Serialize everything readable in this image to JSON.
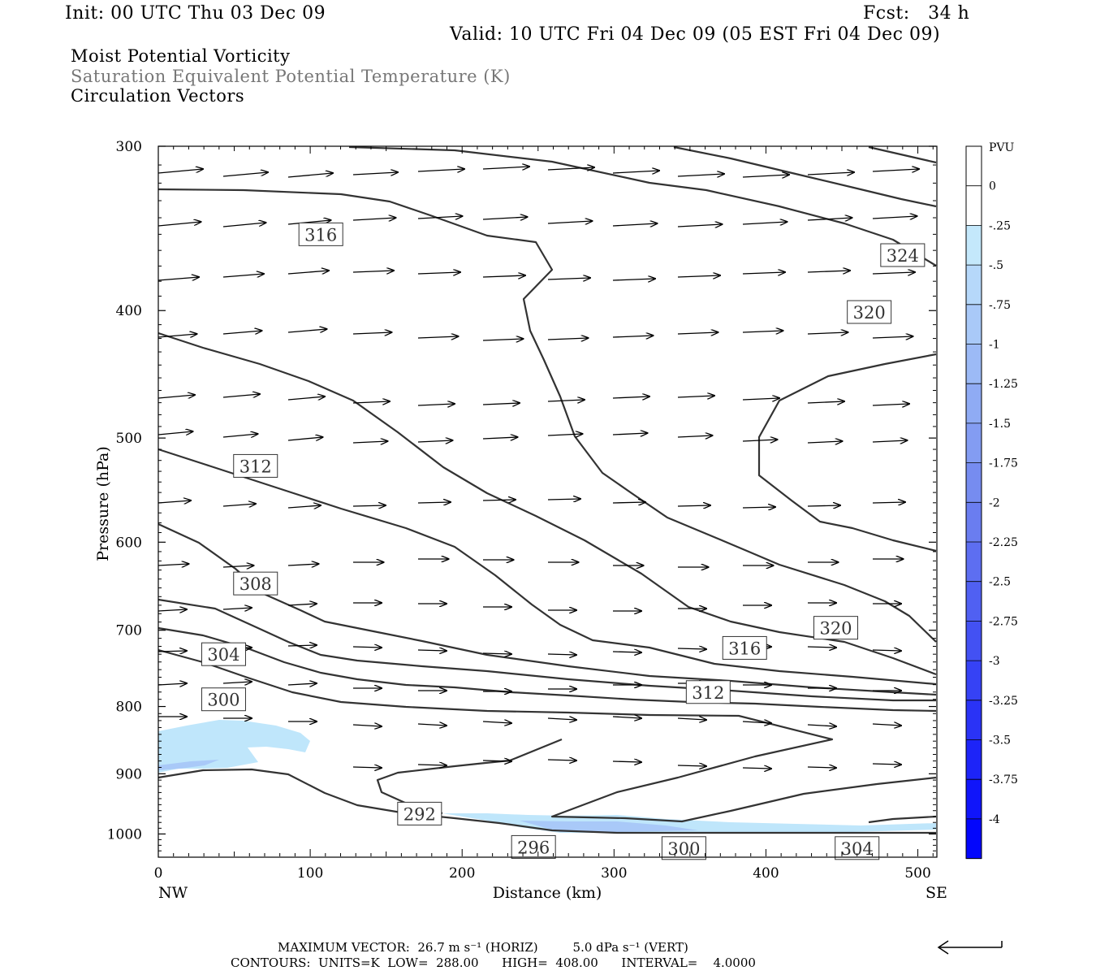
{
  "header": {
    "init": "Init: 00 UTC Thu 03 Dec 09",
    "fcst": "Fcst:   34 h",
    "valid": "Valid: 10 UTC Fri 04 Dec 09 (05 EST Fri 04 Dec 09)"
  },
  "fields": {
    "line1": "Moist Potential Vorticity",
    "line2": "Saturation Equivalent Potential Temperature (K)",
    "line3": "Circulation Vectors"
  },
  "colors": {
    "contour": "#333333",
    "axis": "#000000",
    "field2_text": "#777777"
  },
  "chart_data": {
    "type": "contour",
    "xlabel": "Distance (km)",
    "ylabel": "Pressure (hPa)",
    "xlim": [
      0,
      512
    ],
    "ylim": [
      300,
      1040
    ],
    "y_scale": "log",
    "y_reversed": true,
    "x_ticks": [
      0,
      100,
      200,
      300,
      400,
      500
    ],
    "y_ticks": [
      300,
      400,
      500,
      600,
      700,
      800,
      900,
      1000
    ],
    "x_end_labels": {
      "left": "NW",
      "right": "SE"
    },
    "colorbar": {
      "title": "PVU",
      "levels": [
        "0",
        "-.25",
        "-.5",
        "-.75",
        "-1",
        "-1.25",
        "-1.5",
        "-1.75",
        "-2",
        "-2.25",
        "-2.5",
        "-2.75",
        "-3",
        "-3.25",
        "-3.5",
        "-3.75",
        "-4"
      ],
      "colors": [
        "#ffffff",
        "#ffffff",
        "#c4e8fb",
        "#b6d8fa",
        "#a9c9f8",
        "#9cbaf6",
        "#8fabf4",
        "#839cf2",
        "#768cf0",
        "#6a7df0",
        "#5d6ef1",
        "#5060f2",
        "#4351f3",
        "#3642f5",
        "#2a33f6",
        "#1d24f8",
        "#1015fa",
        "#0306fc"
      ]
    },
    "contour_labels": [
      {
        "text": "316",
        "x": 107,
        "p": 350
      },
      {
        "text": "312",
        "x": 64,
        "p": 525
      },
      {
        "text": "308",
        "x": 64,
        "p": 645
      },
      {
        "text": "304",
        "x": 43,
        "p": 730
      },
      {
        "text": "300",
        "x": 43,
        "p": 790
      },
      {
        "text": "292",
        "x": 172,
        "p": 965
      },
      {
        "text": "296",
        "x": 247,
        "p": 1023
      },
      {
        "text": "300",
        "x": 346,
        "p": 1025
      },
      {
        "text": "304",
        "x": 460,
        "p": 1025
      },
      {
        "text": "324",
        "x": 490,
        "p": 363
      },
      {
        "text": "320",
        "x": 468,
        "p": 401
      },
      {
        "text": "320",
        "x": 446,
        "p": 697
      },
      {
        "text": "316",
        "x": 386,
        "p": 722
      },
      {
        "text": "312",
        "x": 362,
        "p": 780
      }
    ],
    "footer": {
      "max_vector": "MAXIMUM VECTOR:  26.7 m s⁻¹ (HORIZ)         5.0 dPa s⁻¹ (VERT)",
      "contours": "CONTOURS:  UNITS=K  LOW=  288.00      HIGH=  408.00      INTERVAL=    4.0000"
    }
  }
}
